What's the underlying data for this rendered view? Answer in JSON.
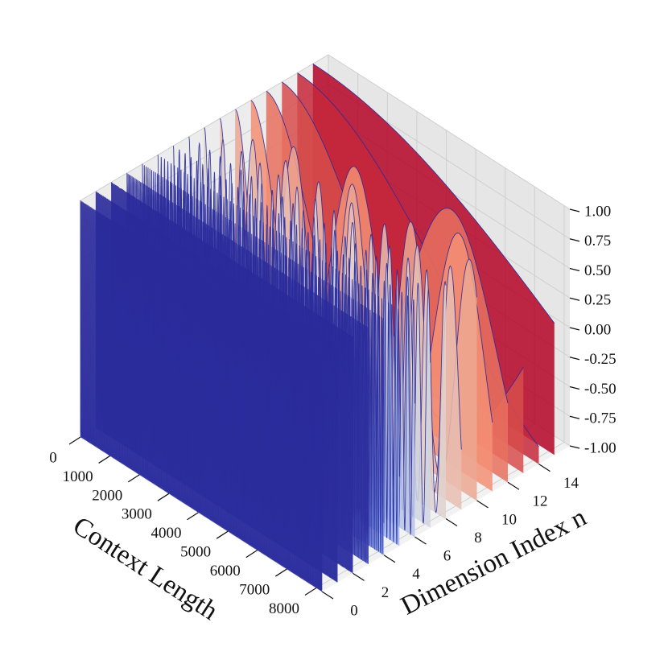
{
  "chart_data": {
    "type": "3d-surface-slices",
    "title": "",
    "xlabel": "Context Length",
    "ylabel": "Dimension Index n",
    "zlabel": "",
    "x_ticks": [
      "0",
      "1000",
      "2000",
      "3000",
      "4000",
      "5000",
      "6000",
      "7000",
      "8000"
    ],
    "y_ticks": [
      "0",
      "2",
      "4",
      "6",
      "8",
      "10",
      "12",
      "14"
    ],
    "z_ticks": [
      "-1.00",
      "-0.75",
      "-0.50",
      "-0.25",
      "0.00",
      "0.25",
      "0.50",
      "0.75",
      "1.00"
    ],
    "xlim": [
      0,
      8192
    ],
    "ylim": [
      0,
      16
    ],
    "zlim": [
      -1,
      1
    ],
    "grid": true,
    "colormap": "coolwarm",
    "function": "cos(x * 10000^(-2n/32))",
    "dimension_indices": [
      0,
      1,
      2,
      3,
      4,
      5,
      6,
      7,
      8,
      9,
      10,
      11,
      12,
      13,
      14,
      15
    ],
    "context_length_max": 8192,
    "colors": {
      "pane": "#f2f2f2",
      "grid": "#cfcfcf",
      "colormap_low": "#3b4cc0",
      "colormap_mid": "#dddddd",
      "colormap_high": "#b40426"
    }
  }
}
